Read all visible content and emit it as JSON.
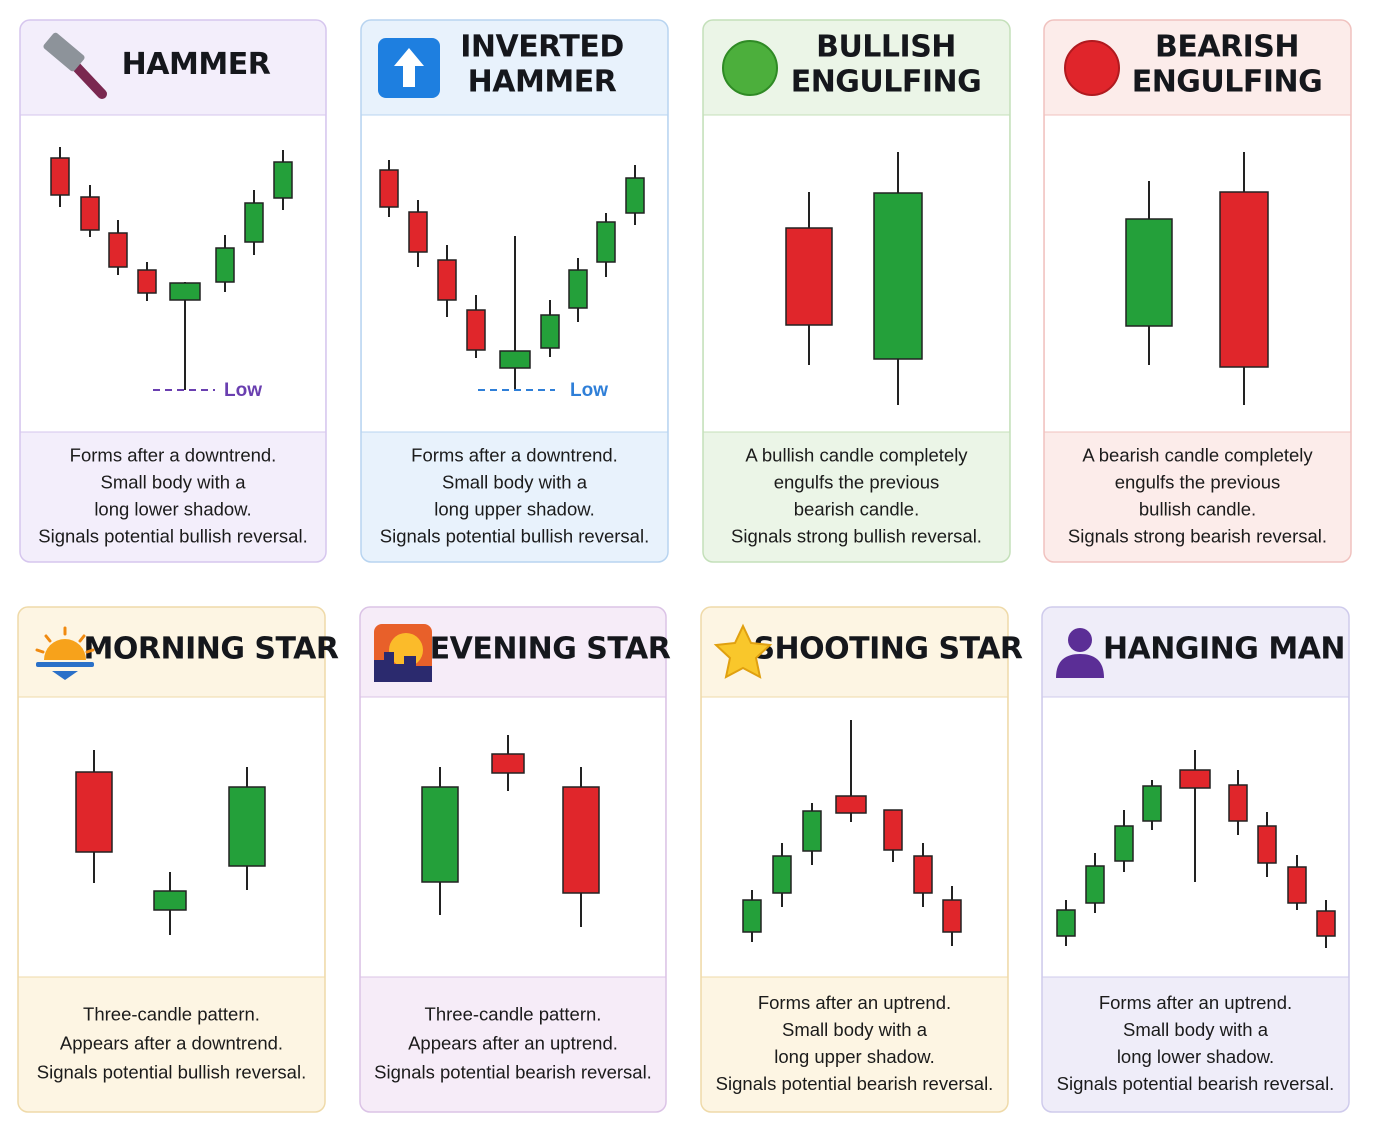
{
  "cards": [
    {
      "title_lines": [
        "HAMMER"
      ],
      "description_lines": [
        "Forms after a downtrend.",
        "Small body with a",
        "long lower shadow.",
        "Signals potential bullish reversal."
      ],
      "low_label": "Low"
    },
    {
      "title_lines": [
        "INVERTED",
        "HAMMER"
      ],
      "description_lines": [
        "Forms after a downtrend.",
        "Small body with a",
        "long upper shadow.",
        "Signals potential bullish reversal."
      ],
      "low_label": "Low"
    },
    {
      "title_lines": [
        "BULLISH",
        "ENGULFING"
      ],
      "description_lines": [
        "A bullish candle completely",
        "engulfs the previous",
        "bearish candle.",
        "Signals strong bullish reversal."
      ]
    },
    {
      "title_lines": [
        "BEARISH",
        "ENGULFING"
      ],
      "description_lines": [
        "A bearish candle completely",
        "engulfs the previous",
        "bullish candle.",
        "Signals strong bearish reversal."
      ]
    },
    {
      "title_lines": [
        "MORNING STAR"
      ],
      "description_lines": [
        "Three-candle pattern.",
        "Appears after a downtrend.",
        "Signals potential bullish reversal."
      ]
    },
    {
      "title_lines": [
        "EVENING STAR"
      ],
      "description_lines": [
        "Three-candle pattern.",
        "Appears after an uptrend.",
        "Signals potential bearish reversal."
      ]
    },
    {
      "title_lines": [
        "SHOOTING STAR"
      ],
      "description_lines": [
        "Forms after an uptrend.",
        "Small body with a",
        "long upper shadow.",
        "Signals potential bearish reversal."
      ]
    },
    {
      "title_lines": [
        "HANGING MAN"
      ],
      "description_lines": [
        "Forms after an uptrend.",
        "Small body with a",
        "long lower shadow.",
        "Signals potential bearish reversal."
      ]
    }
  ]
}
